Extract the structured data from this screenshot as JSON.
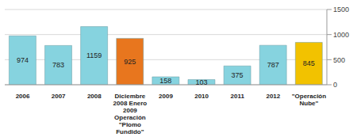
{
  "chart_data": {
    "type": "bar",
    "categories": [
      "2006",
      "2007",
      "2008",
      "Diciembre 2008 Enero 2009 Operación \"Plomo Fundido\"",
      "2009",
      "2010",
      "2011",
      "2012",
      "\"Operación Nube\""
    ],
    "values": [
      974,
      783,
      1159,
      925,
      158,
      103,
      375,
      787,
      845
    ],
    "colors": [
      "#86d3df",
      "#86d3df",
      "#86d3df",
      "#e8761e",
      "#86d3df",
      "#86d3df",
      "#86d3df",
      "#86d3df",
      "#f2c200"
    ],
    "ylim": [
      0,
      1500
    ],
    "yticks": [
      0,
      500,
      1000,
      1500
    ],
    "grid": true,
    "data_labels": true
  }
}
